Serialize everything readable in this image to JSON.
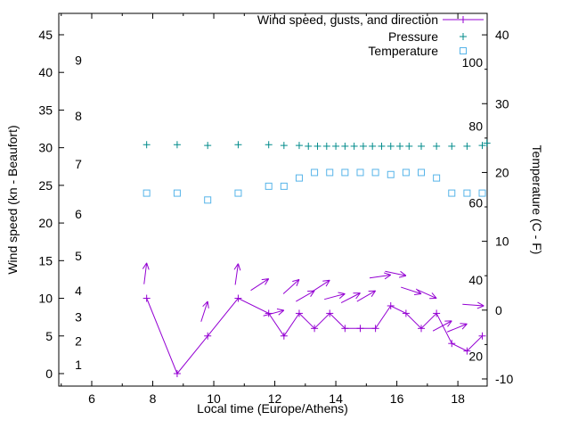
{
  "chart_data": {
    "type": "line",
    "title": "",
    "xlabel": "Local time (Europe/Athens)",
    "ylabel_left": "Wind speed (kn - Beaufort)",
    "ylabel_right": "Temperature (C - F)",
    "x_range": [
      4.92,
      18.96
    ],
    "x_ticks": [
      6,
      8,
      10,
      12,
      14,
      16,
      18
    ],
    "x_minor_ticks": [
      5,
      7,
      9,
      11,
      13,
      15,
      17
    ],
    "y_left_range": [
      -1.66,
      47.84
    ],
    "y_left_ticks": [
      0,
      5,
      10,
      15,
      20,
      25,
      30,
      35,
      40,
      45
    ],
    "y_right_range": [
      -11.04,
      43.12
    ],
    "y_right_ticks": [
      -10,
      0,
      10,
      20,
      30,
      40
    ],
    "y_right_minor_ticks": [
      -5,
      5,
      15,
      25,
      35
    ],
    "beaufort_labels": [
      [
        "1",
        1.2
      ],
      [
        "2",
        4.3
      ],
      [
        "3",
        7.5
      ],
      [
        "4",
        11.0
      ],
      [
        "5",
        15.6
      ],
      [
        "6",
        21.2
      ],
      [
        "7",
        27.8
      ],
      [
        "8",
        34.2
      ],
      [
        "9",
        41.6
      ]
    ],
    "fahrenheit_labels": [
      [
        "20",
        -6.7
      ],
      [
        "40",
        4.4
      ],
      [
        "60",
        15.6
      ],
      [
        "80",
        26.7
      ],
      [
        "100",
        36.0
      ]
    ],
    "legend": [
      {
        "label": "Wind speed, gusts, and direction",
        "marker": "line-plus",
        "color": "#9400D3"
      },
      {
        "label": "Pressure",
        "marker": "plus",
        "color": "#008B8B"
      },
      {
        "label": "Temperature",
        "marker": "square",
        "color": "#56B4E9"
      }
    ],
    "series": {
      "wind": {
        "name": "Wind speed (kn)",
        "color": "#9400D3",
        "points": [
          [
            7.8,
            10
          ],
          [
            8.8,
            0
          ],
          [
            9.8,
            5
          ],
          [
            10.8,
            10
          ],
          [
            11.8,
            8
          ],
          [
            12.3,
            5
          ],
          [
            12.8,
            8
          ],
          [
            13.3,
            6
          ],
          [
            13.8,
            8
          ],
          [
            14.3,
            6
          ],
          [
            14.8,
            6
          ],
          [
            15.3,
            6
          ],
          [
            15.8,
            9
          ],
          [
            16.3,
            8
          ],
          [
            16.8,
            6
          ],
          [
            17.3,
            8
          ],
          [
            17.8,
            4
          ],
          [
            18.3,
            3
          ],
          [
            18.8,
            5
          ]
        ]
      },
      "gusts": {
        "name": "Gusts and direction (arrow tip = gust kn, arrow = wind direction)",
        "color": "#9400D3",
        "arrows": [
          [
            7.8,
            14.7,
            83
          ],
          [
            9.8,
            9.6,
            72
          ],
          [
            10.8,
            14.6,
            82
          ],
          [
            11.8,
            12.6,
            33
          ],
          [
            12.3,
            8.4,
            15
          ],
          [
            12.8,
            12.5,
            42
          ],
          [
            13.3,
            11.0,
            30
          ],
          [
            13.8,
            12.4,
            33
          ],
          [
            14.3,
            10.6,
            15
          ],
          [
            14.8,
            10.7,
            27
          ],
          [
            15.3,
            11.0,
            30
          ],
          [
            15.8,
            13.1,
            8
          ],
          [
            16.3,
            13.0,
            -12
          ],
          [
            16.8,
            10.6,
            -18
          ],
          [
            17.3,
            10.0,
            -24
          ],
          [
            17.8,
            7.0,
            28
          ],
          [
            18.3,
            6.6,
            22
          ],
          [
            18.85,
            9.0,
            -4
          ]
        ]
      },
      "pressure": {
        "name": "Pressure",
        "color": "#008B8B",
        "points": [
          [
            7.8,
            30.4
          ],
          [
            8.8,
            30.4
          ],
          [
            9.8,
            30.3
          ],
          [
            10.8,
            30.4
          ],
          [
            11.8,
            30.4
          ],
          [
            12.3,
            30.3
          ],
          [
            12.8,
            30.3
          ],
          [
            13.1,
            30.2
          ],
          [
            13.4,
            30.2
          ],
          [
            13.7,
            30.2
          ],
          [
            14.0,
            30.2
          ],
          [
            14.3,
            30.2
          ],
          [
            14.6,
            30.2
          ],
          [
            14.9,
            30.2
          ],
          [
            15.2,
            30.2
          ],
          [
            15.5,
            30.2
          ],
          [
            15.8,
            30.2
          ],
          [
            16.1,
            30.2
          ],
          [
            16.4,
            30.2
          ],
          [
            16.8,
            30.2
          ],
          [
            17.3,
            30.2
          ],
          [
            17.8,
            30.2
          ],
          [
            18.3,
            30.2
          ],
          [
            18.8,
            30.3
          ],
          [
            18.95,
            30.6
          ]
        ]
      },
      "temperature": {
        "name": "Temperature (C)",
        "color": "#56B4E9",
        "points_c": [
          [
            7.8,
            17
          ],
          [
            8.8,
            17
          ],
          [
            9.8,
            16
          ],
          [
            10.8,
            17
          ],
          [
            11.8,
            18
          ],
          [
            12.3,
            18
          ],
          [
            12.8,
            19.2
          ],
          [
            13.3,
            20
          ],
          [
            13.8,
            20
          ],
          [
            14.3,
            20
          ],
          [
            14.8,
            20
          ],
          [
            15.3,
            20
          ],
          [
            15.8,
            19.7
          ],
          [
            16.3,
            20
          ],
          [
            16.8,
            20
          ],
          [
            17.3,
            19.2
          ],
          [
            17.8,
            17
          ],
          [
            18.3,
            17
          ],
          [
            18.8,
            17
          ]
        ]
      }
    }
  }
}
